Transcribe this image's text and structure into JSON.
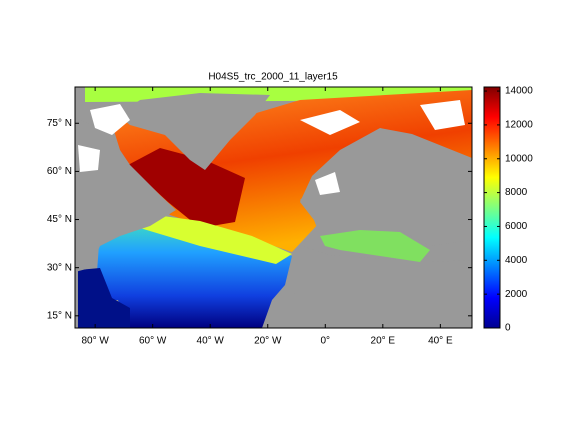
{
  "title": "H04S5_trc_2000_11_layer15",
  "map": {
    "xlim": [
      -87,
      51
    ],
    "ylim": [
      11.2,
      86.3
    ],
    "xticks": [
      {
        "value": -80,
        "label": "80° W"
      },
      {
        "value": -60,
        "label": "60° W"
      },
      {
        "value": -40,
        "label": "40° W"
      },
      {
        "value": -20,
        "label": "20° W"
      },
      {
        "value": 0,
        "label": "0°"
      },
      {
        "value": 20,
        "label": "20° E"
      },
      {
        "value": 40,
        "label": "40° E"
      }
    ],
    "yticks": [
      {
        "value": 15,
        "label": "15° N"
      },
      {
        "value": 30,
        "label": "30° N"
      },
      {
        "value": 45,
        "label": "45° N"
      },
      {
        "value": 60,
        "label": "60° N"
      },
      {
        "value": 75,
        "label": "75° N"
      }
    ]
  },
  "colorbar": {
    "clim": [
      0,
      14240
    ],
    "ticks": [
      0,
      2000,
      4000,
      6000,
      8000,
      10000,
      12000,
      14000
    ]
  }
}
